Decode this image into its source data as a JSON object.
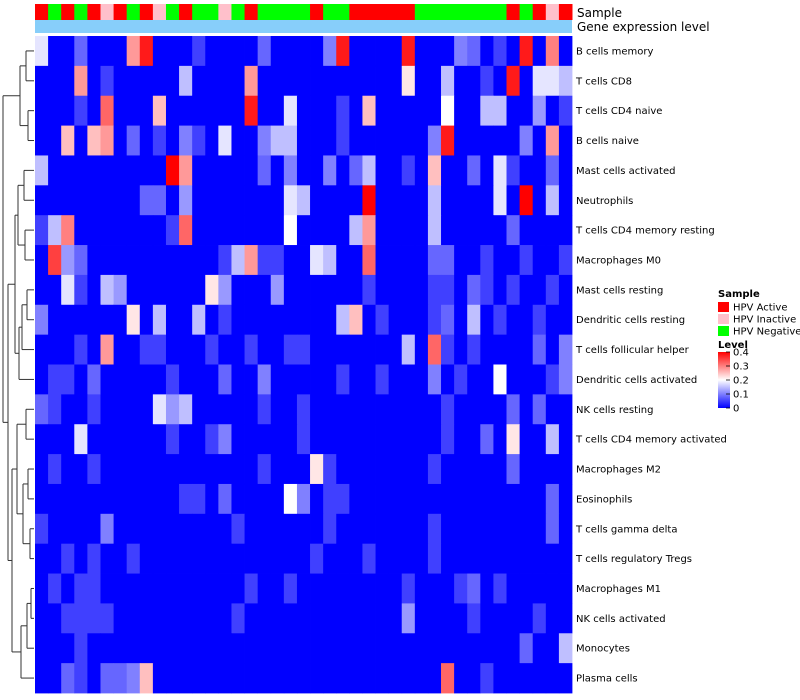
{
  "chart_data": {
    "type": "heatmap",
    "annotation_rows": [
      "Sample",
      "Gene expression level"
    ],
    "sample_legend": {
      "title": "Sample",
      "items": [
        {
          "label": "HPV Active",
          "color": "#ff0000"
        },
        {
          "label": "HPV Inactive",
          "color": "#ffc0cb"
        },
        {
          "label": "HPV Negative",
          "color": "#00ff00"
        }
      ]
    },
    "level_legend": {
      "title": "Level",
      "ticks": [
        "0.4",
        "0.3",
        "0.2",
        "0.1",
        "0"
      ],
      "min": 0,
      "max": 0.4,
      "colors": {
        "low": "#0000ff",
        "mid": "#ffffff",
        "high": "#ff0000"
      }
    },
    "gene_expression_color": "#87cefa",
    "sample_groups": [
      "A",
      "G",
      "A",
      "G",
      "A",
      "P",
      "A",
      "G",
      "A",
      "P",
      "G",
      "A",
      "G",
      "G",
      "P",
      "G",
      "A",
      "G",
      "G",
      "G",
      "G",
      "A",
      "G",
      "G",
      "A",
      "A",
      "A",
      "A",
      "A",
      "G",
      "G",
      "G",
      "G",
      "G",
      "G",
      "G",
      "A",
      "G",
      "A",
      "P",
      "A"
    ],
    "rows": [
      "B cells memory",
      "T cells CD8",
      "T cells CD4 naive",
      "B cells naive",
      "Mast cells activated",
      "Neutrophils",
      "T cells CD4 memory resting",
      "Macrophages M0",
      "Mast cells resting",
      "Dendritic cells resting",
      "T cells follicular helper",
      "Dendritic cells activated",
      "NK cells resting",
      "T cells CD4 memory activated",
      "Macrophages M2",
      "Eosinophils",
      "T cells gamma delta",
      "T cells regulatory  Tregs",
      "Macrophages M1",
      "NK cells activated",
      "Monocytes",
      "Plasma cells"
    ],
    "values": [
      [
        0.18,
        0.0,
        0.0,
        0.08,
        0.0,
        0.0,
        0.0,
        0.28,
        0.38,
        0.0,
        0.0,
        0.0,
        0.05,
        0.0,
        0.0,
        0.0,
        0.0,
        0.08,
        0.0,
        0.0,
        0.0,
        0.0,
        0.1,
        0.38,
        0.0,
        0.0,
        0.0,
        0.0,
        0.38,
        0.0,
        0.0,
        0.0,
        0.1,
        0.08,
        0.0,
        0.05,
        0.0,
        0.38,
        0.0,
        0.3,
        0.0
      ],
      [
        0.0,
        0.0,
        0.0,
        0.28,
        0.0,
        0.05,
        0.0,
        0.0,
        0.0,
        0.0,
        0.0,
        0.15,
        0.0,
        0.0,
        0.0,
        0.0,
        0.28,
        0.0,
        0.0,
        0.0,
        0.0,
        0.0,
        0.0,
        0.0,
        0.0,
        0.0,
        0.0,
        0.0,
        0.22,
        0.0,
        0.0,
        0.15,
        0.0,
        0.0,
        0.05,
        0.0,
        0.38,
        0.0,
        0.18,
        0.18,
        0.15
      ],
      [
        0.0,
        0.0,
        0.0,
        0.05,
        0.0,
        0.32,
        0.0,
        0.0,
        0.0,
        0.25,
        0.0,
        0.0,
        0.0,
        0.0,
        0.0,
        0.0,
        0.38,
        0.0,
        0.0,
        0.18,
        0.0,
        0.0,
        0.0,
        0.05,
        0.0,
        0.25,
        0.0,
        0.0,
        0.0,
        0.0,
        0.0,
        0.2,
        0.0,
        0.0,
        0.15,
        0.15,
        0.0,
        0.0,
        0.12,
        0.0,
        0.05
      ],
      [
        0.0,
        0.0,
        0.25,
        0.0,
        0.25,
        0.28,
        0.0,
        0.08,
        0.0,
        0.05,
        0.0,
        0.1,
        0.05,
        0.0,
        0.18,
        0.0,
        0.0,
        0.1,
        0.15,
        0.15,
        0.0,
        0.0,
        0.0,
        0.05,
        0.0,
        0.0,
        0.0,
        0.0,
        0.0,
        0.0,
        0.1,
        0.38,
        0.0,
        0.0,
        0.0,
        0.0,
        0.0,
        0.1,
        0.0,
        0.28,
        0.0
      ],
      [
        0.15,
        0.0,
        0.0,
        0.0,
        0.0,
        0.0,
        0.0,
        0.0,
        0.0,
        0.0,
        0.4,
        0.28,
        0.0,
        0.0,
        0.0,
        0.0,
        0.0,
        0.08,
        0.0,
        0.1,
        0.0,
        0.0,
        0.1,
        0.0,
        0.08,
        0.15,
        0.0,
        0.0,
        0.05,
        0.0,
        0.25,
        0.0,
        0.0,
        0.08,
        0.0,
        0.18,
        0.05,
        0.0,
        0.0,
        0.08,
        0.0
      ],
      [
        0.0,
        0.0,
        0.0,
        0.0,
        0.0,
        0.0,
        0.0,
        0.0,
        0.08,
        0.08,
        0.0,
        0.12,
        0.0,
        0.0,
        0.0,
        0.0,
        0.0,
        0.0,
        0.0,
        0.18,
        0.15,
        0.0,
        0.0,
        0.0,
        0.0,
        0.4,
        0.0,
        0.0,
        0.0,
        0.0,
        0.15,
        0.0,
        0.0,
        0.0,
        0.0,
        0.18,
        0.0,
        0.4,
        0.0,
        0.15,
        0.0
      ],
      [
        0.05,
        0.15,
        0.3,
        0.0,
        0.0,
        0.0,
        0.0,
        0.0,
        0.0,
        0.0,
        0.05,
        0.32,
        0.0,
        0.0,
        0.0,
        0.0,
        0.0,
        0.0,
        0.0,
        0.2,
        0.0,
        0.0,
        0.0,
        0.0,
        0.15,
        0.28,
        0.0,
        0.0,
        0.0,
        0.0,
        0.15,
        0.0,
        0.0,
        0.0,
        0.0,
        0.0,
        0.08,
        0.0,
        0.0,
        0.0,
        0.0
      ],
      [
        0.0,
        0.35,
        0.12,
        0.08,
        0.0,
        0.0,
        0.0,
        0.0,
        0.0,
        0.0,
        0.0,
        0.0,
        0.0,
        0.0,
        0.05,
        0.15,
        0.28,
        0.05,
        0.05,
        0.0,
        0.0,
        0.18,
        0.15,
        0.0,
        0.0,
        0.32,
        0.0,
        0.0,
        0.0,
        0.0,
        0.08,
        0.08,
        0.0,
        0.0,
        0.05,
        0.0,
        0.0,
        0.05,
        0.0,
        0.0,
        0.05
      ],
      [
        0.0,
        0.0,
        0.18,
        0.05,
        0.0,
        0.15,
        0.12,
        0.0,
        0.0,
        0.0,
        0.0,
        0.0,
        0.0,
        0.22,
        0.12,
        0.0,
        0.0,
        0.0,
        0.12,
        0.0,
        0.0,
        0.0,
        0.0,
        0.0,
        0.0,
        0.05,
        0.0,
        0.0,
        0.0,
        0.0,
        0.05,
        0.05,
        0.0,
        0.08,
        0.05,
        0.0,
        0.05,
        0.0,
        0.0,
        0.05,
        0.0
      ],
      [
        0.1,
        0.0,
        0.0,
        0.0,
        0.0,
        0.0,
        0.0,
        0.22,
        0.0,
        0.15,
        0.0,
        0.0,
        0.15,
        0.0,
        0.05,
        0.0,
        0.0,
        0.0,
        0.0,
        0.0,
        0.0,
        0.0,
        0.0,
        0.15,
        0.25,
        0.0,
        0.05,
        0.0,
        0.0,
        0.0,
        0.05,
        0.08,
        0.0,
        0.15,
        0.0,
        0.05,
        0.0,
        0.0,
        0.05,
        0.0,
        0.0
      ],
      [
        0.0,
        0.0,
        0.0,
        0.05,
        0.0,
        0.28,
        0.0,
        0.0,
        0.05,
        0.05,
        0.0,
        0.0,
        0.0,
        0.05,
        0.0,
        0.0,
        0.05,
        0.0,
        0.0,
        0.05,
        0.05,
        0.0,
        0.0,
        0.0,
        0.0,
        0.0,
        0.0,
        0.0,
        0.15,
        0.0,
        0.32,
        0.05,
        0.0,
        0.05,
        0.0,
        0.0,
        0.0,
        0.0,
        0.08,
        0.0,
        0.1
      ],
      [
        0.0,
        0.05,
        0.05,
        0.0,
        0.08,
        0.0,
        0.0,
        0.0,
        0.0,
        0.0,
        0.05,
        0.0,
        0.0,
        0.0,
        0.08,
        0.0,
        0.0,
        0.1,
        0.0,
        0.0,
        0.0,
        0.0,
        0.0,
        0.05,
        0.0,
        0.0,
        0.05,
        0.0,
        0.0,
        0.0,
        0.1,
        0.0,
        0.05,
        0.0,
        0.0,
        0.2,
        0.0,
        0.0,
        0.0,
        0.05,
        0.1
      ],
      [
        0.08,
        0.05,
        0.0,
        0.0,
        0.05,
        0.0,
        0.0,
        0.0,
        0.0,
        0.18,
        0.12,
        0.15,
        0.0,
        0.0,
        0.0,
        0.0,
        0.0,
        0.05,
        0.0,
        0.0,
        0.05,
        0.0,
        0.0,
        0.0,
        0.0,
        0.0,
        0.0,
        0.0,
        0.0,
        0.0,
        0.0,
        0.05,
        0.0,
        0.0,
        0.0,
        0.0,
        0.08,
        0.0,
        0.08,
        0.0,
        0.0
      ],
      [
        0.0,
        0.0,
        0.0,
        0.18,
        0.0,
        0.0,
        0.0,
        0.0,
        0.0,
        0.0,
        0.05,
        0.0,
        0.0,
        0.05,
        0.1,
        0.0,
        0.0,
        0.0,
        0.0,
        0.0,
        0.05,
        0.0,
        0.0,
        0.0,
        0.0,
        0.0,
        0.0,
        0.0,
        0.0,
        0.0,
        0.0,
        0.05,
        0.0,
        0.0,
        0.08,
        0.0,
        0.22,
        0.0,
        0.0,
        0.15,
        0.0
      ],
      [
        0.0,
        0.05,
        0.0,
        0.0,
        0.05,
        0.0,
        0.0,
        0.0,
        0.0,
        0.0,
        0.0,
        0.0,
        0.0,
        0.0,
        0.0,
        0.0,
        0.0,
        0.05,
        0.0,
        0.0,
        0.0,
        0.22,
        0.05,
        0.0,
        0.0,
        0.0,
        0.0,
        0.0,
        0.0,
        0.0,
        0.05,
        0.0,
        0.0,
        0.0,
        0.0,
        0.0,
        0.08,
        0.0,
        0.0,
        0.0,
        0.0
      ],
      [
        0.0,
        0.0,
        0.0,
        0.0,
        0.0,
        0.0,
        0.0,
        0.0,
        0.0,
        0.0,
        0.0,
        0.05,
        0.05,
        0.0,
        0.08,
        0.0,
        0.0,
        0.0,
        0.0,
        0.2,
        0.1,
        0.0,
        0.05,
        0.05,
        0.0,
        0.0,
        0.0,
        0.0,
        0.0,
        0.0,
        0.0,
        0.0,
        0.0,
        0.0,
        0.0,
        0.0,
        0.0,
        0.0,
        0.0,
        0.08,
        0.0
      ],
      [
        0.05,
        0.0,
        0.0,
        0.0,
        0.0,
        0.1,
        0.0,
        0.0,
        0.0,
        0.0,
        0.0,
        0.0,
        0.0,
        0.0,
        0.0,
        0.05,
        0.0,
        0.0,
        0.0,
        0.0,
        0.0,
        0.0,
        0.05,
        0.0,
        0.0,
        0.0,
        0.0,
        0.0,
        0.0,
        0.0,
        0.05,
        0.0,
        0.0,
        0.0,
        0.0,
        0.0,
        0.0,
        0.0,
        0.0,
        0.08,
        0.0
      ],
      [
        0.0,
        0.0,
        0.05,
        0.0,
        0.05,
        0.0,
        0.0,
        0.05,
        0.0,
        0.0,
        0.0,
        0.0,
        0.0,
        0.0,
        0.0,
        0.0,
        0.0,
        0.0,
        0.0,
        0.0,
        0.0,
        0.05,
        0.0,
        0.0,
        0.0,
        0.05,
        0.0,
        0.0,
        0.0,
        0.0,
        0.05,
        0.0,
        0.0,
        0.0,
        0.0,
        0.0,
        0.0,
        0.0,
        0.0,
        0.0,
        0.0
      ],
      [
        0.0,
        0.05,
        0.0,
        0.05,
        0.05,
        0.0,
        0.0,
        0.0,
        0.0,
        0.0,
        0.0,
        0.0,
        0.0,
        0.0,
        0.0,
        0.0,
        0.05,
        0.0,
        0.0,
        0.05,
        0.0,
        0.0,
        0.0,
        0.0,
        0.0,
        0.0,
        0.0,
        0.0,
        0.05,
        0.0,
        0.0,
        0.0,
        0.05,
        0.08,
        0.0,
        0.05,
        0.0,
        0.0,
        0.0,
        0.0,
        0.0
      ],
      [
        0.0,
        0.0,
        0.05,
        0.05,
        0.05,
        0.05,
        0.0,
        0.0,
        0.0,
        0.0,
        0.0,
        0.0,
        0.0,
        0.0,
        0.0,
        0.05,
        0.0,
        0.0,
        0.0,
        0.0,
        0.0,
        0.0,
        0.0,
        0.0,
        0.0,
        0.0,
        0.0,
        0.0,
        0.12,
        0.0,
        0.0,
        0.0,
        0.0,
        0.05,
        0.0,
        0.0,
        0.0,
        0.0,
        0.05,
        0.0,
        0.0
      ],
      [
        0.0,
        0.0,
        0.0,
        0.05,
        0.0,
        0.0,
        0.0,
        0.0,
        0.0,
        0.0,
        0.0,
        0.0,
        0.0,
        0.0,
        0.0,
        0.0,
        0.0,
        0.0,
        0.0,
        0.0,
        0.0,
        0.0,
        0.0,
        0.0,
        0.0,
        0.0,
        0.0,
        0.0,
        0.0,
        0.0,
        0.0,
        0.0,
        0.0,
        0.0,
        0.0,
        0.0,
        0.0,
        0.08,
        0.0,
        0.0,
        0.15
      ],
      [
        0.0,
        0.0,
        0.08,
        0.05,
        0.0,
        0.08,
        0.08,
        0.1,
        0.25,
        0.0,
        0.0,
        0.0,
        0.0,
        0.0,
        0.0,
        0.0,
        0.0,
        0.0,
        0.0,
        0.0,
        0.0,
        0.0,
        0.0,
        0.0,
        0.0,
        0.0,
        0.0,
        0.0,
        0.0,
        0.0,
        0.0,
        0.32,
        0.0,
        0.0,
        0.05,
        0.0,
        0.0,
        0.0,
        0.0,
        0.0,
        0.0
      ]
    ]
  }
}
